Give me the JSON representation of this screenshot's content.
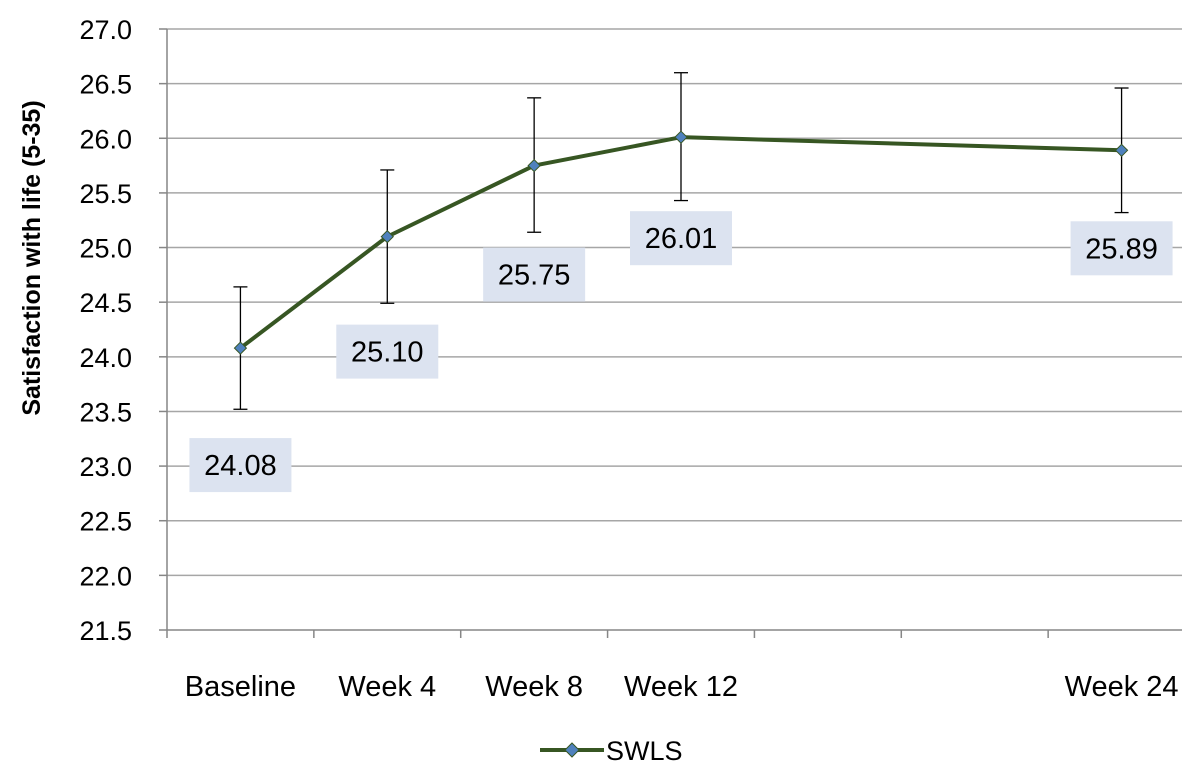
{
  "chart_data": {
    "type": "line",
    "title": "",
    "xlabel": "",
    "ylabel": "Satisfaction with life (5-35)",
    "categories": [
      "Baseline",
      "Week 4",
      "Week 8",
      "Week 12",
      "Week 24"
    ],
    "x_weeks": [
      0,
      4,
      8,
      12,
      24
    ],
    "series": [
      {
        "name": "SWLS",
        "values": [
          24.08,
          25.1,
          25.75,
          26.01,
          25.89
        ],
        "error_low": [
          23.52,
          24.49,
          25.14,
          25.43,
          25.32
        ],
        "error_high": [
          24.64,
          25.71,
          26.37,
          26.6,
          26.46
        ],
        "data_labels": [
          "24.08",
          "25.10",
          "25.75",
          "26.01",
          "25.89"
        ],
        "line_color": "#375623",
        "marker_color": "#4f81bd",
        "marker": "diamond"
      }
    ],
    "ylim": [
      21.5,
      27.0
    ],
    "y_ticks": [
      "21.5",
      "22.0",
      "22.5",
      "23.0",
      "23.5",
      "24.0",
      "24.5",
      "25.0",
      "25.5",
      "26.0",
      "26.5",
      "27.0"
    ],
    "grid": true,
    "grid_color": "#a6a6a6",
    "data_label_bg": "#dce3f0",
    "legend_position": "bottom"
  }
}
